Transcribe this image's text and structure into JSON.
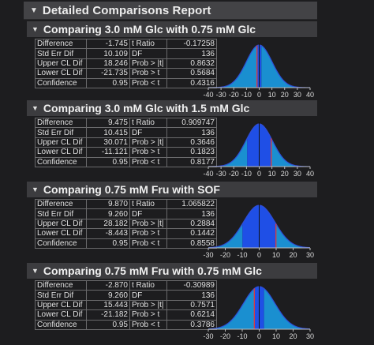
{
  "report": {
    "title": "Detailed Comparisons Report",
    "colors": {
      "tail": "#1a8fd0",
      "middle": "#1f4fe6",
      "curve": "#2f4dd6",
      "ref_line": "#e03a3a"
    },
    "comparisons": [
      {
        "title": "Comparing 3.0 mM Glc with 0.75 mM Glc",
        "rows": [
          {
            "k1": "Difference",
            "v1": "-1.745",
            "k2": "t Ratio",
            "v2": "-0.17258"
          },
          {
            "k1": "Std Err Dif",
            "v1": "10.109",
            "k2": "DF",
            "v2": "136"
          },
          {
            "k1": "Upper CL Dif",
            "v1": "18.246",
            "k2": "Prob > |t|",
            "v2": "0.8632"
          },
          {
            "k1": "Lower CL Dif",
            "v1": "-21.735",
            "k2": "Prob > t",
            "v2": "0.5684"
          },
          {
            "k1": "Confidence",
            "v1": "0.95",
            "k2": "Prob < t",
            "v2": "0.4316"
          }
        ],
        "axis_ticks": [
          "-40",
          "-30",
          "-20",
          "-10",
          "0",
          "10",
          "20",
          "30",
          "40"
        ]
      },
      {
        "title": "Comparing 3.0 mM Glc with 1.5 mM Glc",
        "rows": [
          {
            "k1": "Difference",
            "v1": "9.475",
            "k2": "t Ratio",
            "v2": "0.909747"
          },
          {
            "k1": "Std Err Dif",
            "v1": "10.415",
            "k2": "DF",
            "v2": "136"
          },
          {
            "k1": "Upper CL Dif",
            "v1": "30.071",
            "k2": "Prob > |t|",
            "v2": "0.3646"
          },
          {
            "k1": "Lower CL Dif",
            "v1": "-11.121",
            "k2": "Prob > t",
            "v2": "0.1823"
          },
          {
            "k1": "Confidence",
            "v1": "0.95",
            "k2": "Prob < t",
            "v2": "0.8177"
          }
        ],
        "axis_ticks": [
          "-40",
          "-30",
          "-20",
          "-10",
          "0",
          "10",
          "20",
          "30",
          "40"
        ]
      },
      {
        "title": "Comparing 0.75 mM Fru with SOF",
        "rows": [
          {
            "k1": "Difference",
            "v1": "9.870",
            "k2": "t Ratio",
            "v2": "1.065822"
          },
          {
            "k1": "Std Err Dif",
            "v1": "9.260",
            "k2": "DF",
            "v2": "136"
          },
          {
            "k1": "Upper CL Dif",
            "v1": "28.182",
            "k2": "Prob > |t|",
            "v2": "0.2884"
          },
          {
            "k1": "Lower CL Dif",
            "v1": "-8.443",
            "k2": "Prob > t",
            "v2": "0.1442"
          },
          {
            "k1": "Confidence",
            "v1": "0.95",
            "k2": "Prob < t",
            "v2": "0.8558"
          }
        ],
        "axis_ticks": [
          "-30",
          "-20",
          "-10",
          "0",
          "10",
          "20",
          "30"
        ]
      },
      {
        "title": "Comparing 0.75 mM Fru with 0.75 mM Glc",
        "rows": [
          {
            "k1": "Difference",
            "v1": "-2.870",
            "k2": "t Ratio",
            "v2": "-0.30989"
          },
          {
            "k1": "Std Err Dif",
            "v1": "9.260",
            "k2": "DF",
            "v2": "136"
          },
          {
            "k1": "Upper CL Dif",
            "v1": "15.443",
            "k2": "Prob > |t|",
            "v2": "0.7571"
          },
          {
            "k1": "Lower CL Dif",
            "v1": "-21.182",
            "k2": "Prob > t",
            "v2": "0.6214"
          },
          {
            "k1": "Confidence",
            "v1": "0.95",
            "k2": "Prob < t",
            "v2": "0.3786"
          }
        ],
        "axis_ticks": [
          "-30",
          "-20",
          "-10",
          "0",
          "10",
          "20",
          "30"
        ]
      }
    ]
  }
}
